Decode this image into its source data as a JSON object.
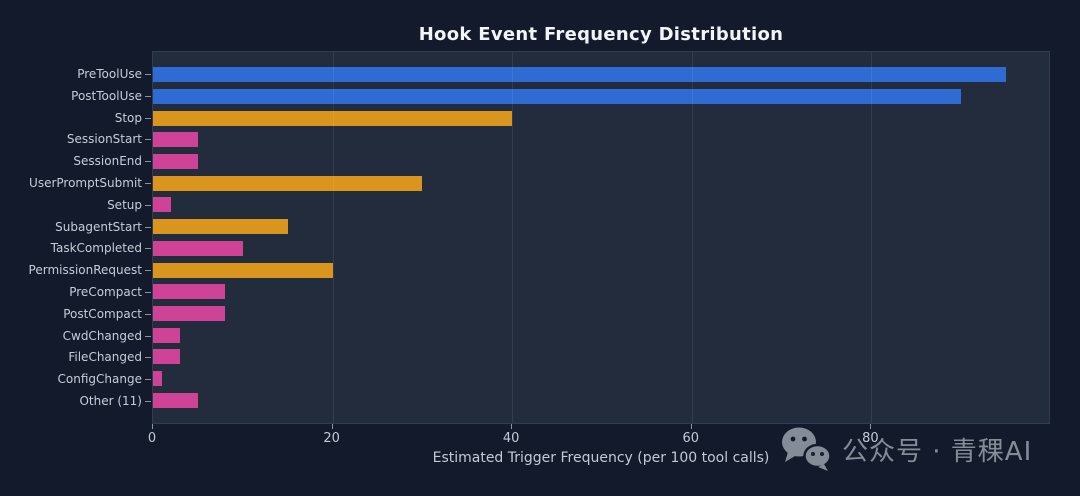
{
  "chart_data": {
    "type": "bar",
    "orientation": "horizontal",
    "title": "Hook Event Frequency Distribution",
    "xlabel": "Estimated Trigger Frequency (per 100 tool calls)",
    "ylabel": "",
    "categories": [
      "PreToolUse",
      "PostToolUse",
      "Stop",
      "SessionStart",
      "SessionEnd",
      "UserPromptSubmit",
      "Setup",
      "SubagentStart",
      "TaskCompleted",
      "PermissionRequest",
      "PreCompact",
      "PostCompact",
      "CwdChanged",
      "FileChanged",
      "ConfigChange",
      "Other (11)"
    ],
    "values": [
      95,
      90,
      40,
      5,
      5,
      30,
      2,
      15,
      10,
      20,
      8,
      8,
      3,
      3,
      1,
      5
    ],
    "bar_colors": [
      "#2e6bd2",
      "#2e6bd2",
      "#d9951e",
      "#cf4397",
      "#cf4397",
      "#d9951e",
      "#cf4397",
      "#d9951e",
      "#cf4397",
      "#d9951e",
      "#cf4397",
      "#cf4397",
      "#cf4397",
      "#cf4397",
      "#cf4397",
      "#cf4397"
    ],
    "xlim": [
      0,
      100
    ],
    "xticks": [
      0,
      20,
      40,
      60,
      80
    ],
    "grid": true,
    "legend": false
  },
  "colors": {
    "figure_background": "#121a2b",
    "plot_background": "#222c3d",
    "blue": "#2e6bd2",
    "orange": "#d9951e",
    "pink": "#cf4397",
    "title_text": "#f2f5f9",
    "label_text": "#c6cdd9"
  },
  "watermark": {
    "icon": "wechat-icon",
    "text": "公众号 · 青稞AI"
  }
}
